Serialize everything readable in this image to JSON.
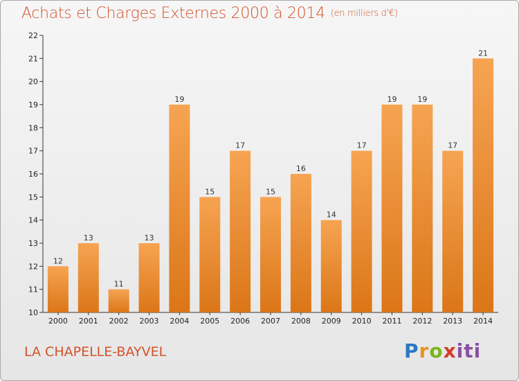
{
  "chart": {
    "title": "Achats et Charges Externes 2000 à 2014",
    "subtitle": "(en milliers d'€)",
    "location": "LA CHAPELLE-BAYVEL",
    "logo_text": [
      "P",
      "r",
      "o",
      "x",
      "iti"
    ]
  },
  "colors": {
    "title": "#d3522a",
    "bar_top": "#f6a452",
    "bar_bottom": "#db7618",
    "axis": "#333333"
  },
  "chart_data": {
    "type": "bar",
    "categories": [
      "2000",
      "2001",
      "2002",
      "2003",
      "2004",
      "2005",
      "2006",
      "2007",
      "2008",
      "2009",
      "2010",
      "2011",
      "2012",
      "2013",
      "2014"
    ],
    "values": [
      12,
      13,
      11,
      13,
      19,
      15,
      17,
      15,
      16,
      14,
      17,
      19,
      19,
      17,
      21
    ],
    "title": "Achats et Charges Externes 2000 à 2014",
    "ylim": [
      10,
      22
    ],
    "yticks": [
      10,
      11,
      12,
      13,
      14,
      15,
      16,
      17,
      18,
      19,
      20,
      21,
      22
    ],
    "grid": false,
    "data_labels": true
  }
}
